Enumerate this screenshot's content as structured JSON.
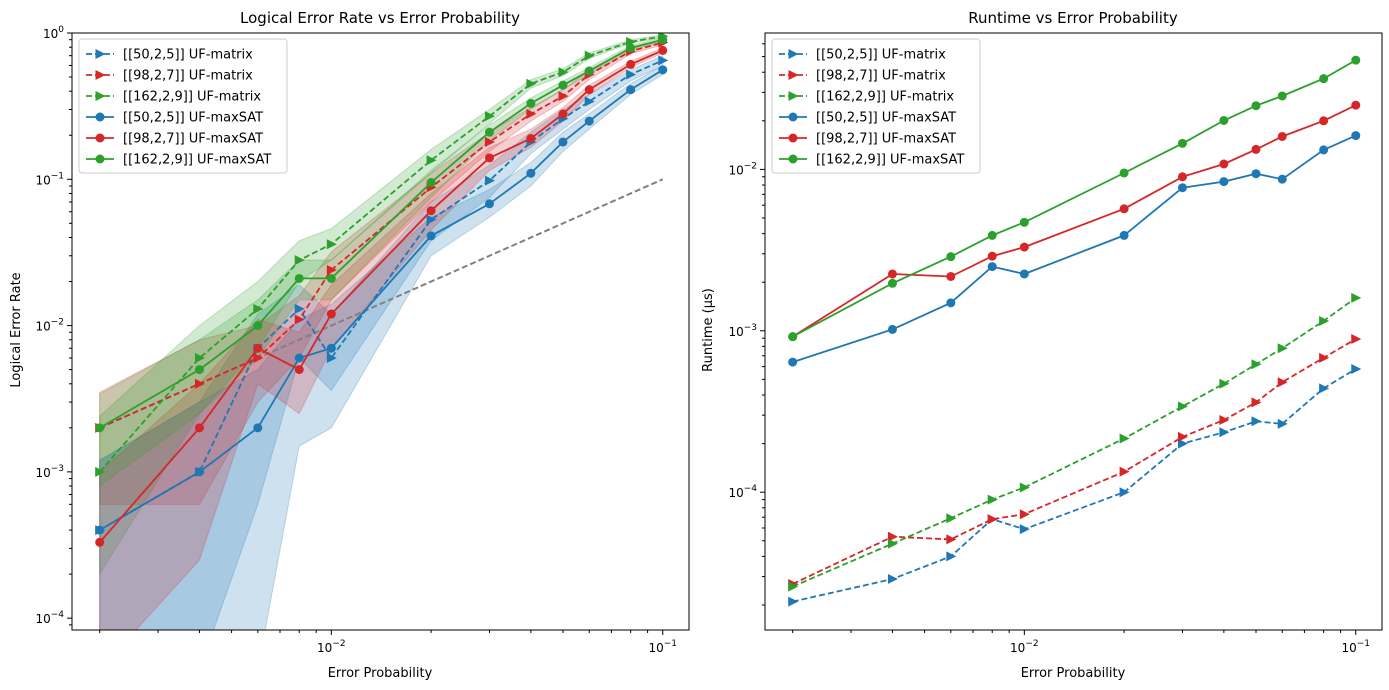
{
  "colors": {
    "blue": "#1f77b4",
    "red": "#d62728",
    "green": "#2ca02c",
    "reference": "#808080"
  },
  "chart_data": [
    {
      "type": "line",
      "title": "Logical Error Rate vs Error Probability",
      "xlabel": "Error Probability",
      "ylabel": "Logical Error Rate",
      "xscale": "log",
      "yscale": "log",
      "xlim": [
        0.00165,
        0.12
      ],
      "ylim": [
        8.3e-05,
        1
      ],
      "xticks": [
        {
          "value": 0.01,
          "label": "10^-2"
        },
        {
          "value": 0.1,
          "label": "10^-1"
        }
      ],
      "yticks": [
        {
          "value": 0.0001,
          "label": "10^-4"
        },
        {
          "value": 0.001,
          "label": "10^-3"
        },
        {
          "value": 0.01,
          "label": "10^-2"
        },
        {
          "value": 0.1,
          "label": "10^-1"
        },
        {
          "value": 1,
          "label": "10^0"
        }
      ],
      "grid": false,
      "legend": "upper left",
      "x": [
        0.002,
        0.004,
        0.006,
        0.008,
        0.01,
        0.02,
        0.03,
        0.04,
        0.05,
        0.06,
        0.08,
        0.1
      ],
      "reference_line": {
        "x": [
          0.002,
          0.1
        ],
        "y": [
          0.002,
          0.1
        ],
        "style": "dashed",
        "color": "#808080"
      },
      "series": [
        {
          "name": "[[50,2,5]] UF-matrix",
          "color": "#1f77b4",
          "dash": true,
          "marker": "triangle",
          "values": [
            0.0004,
            0.001,
            0.007,
            0.013,
            0.006,
            0.053,
            0.098,
            0.18,
            0.26,
            0.34,
            0.52,
            0.65
          ],
          "lower": [
            null,
            null,
            0.0006,
            0.006,
            0.0036,
            0.038,
            0.075,
            0.15,
            0.22,
            0.3,
            0.47,
            0.6
          ],
          "upper": [
            0.0012,
            0.003,
            0.012,
            0.019,
            0.012,
            0.07,
            0.125,
            0.21,
            0.3,
            0.38,
            0.56,
            0.7
          ]
        },
        {
          "name": "[[98,2,7]] UF-matrix",
          "color": "#d62728",
          "dash": true,
          "marker": "triangle",
          "values": [
            0.002,
            0.004,
            0.006,
            0.011,
            0.024,
            0.088,
            0.18,
            0.28,
            0.37,
            0.52,
            0.75,
            0.86
          ],
          "lower": [
            0.0006,
            0.0006,
            0.003,
            0.006,
            0.015,
            0.07,
            0.155,
            0.25,
            0.34,
            0.48,
            0.72,
            0.83
          ],
          "upper": [
            0.0035,
            0.008,
            0.01,
            0.016,
            0.032,
            0.11,
            0.21,
            0.31,
            0.41,
            0.56,
            0.78,
            0.89
          ]
        },
        {
          "name": "[[162,2,9]] UF-matrix",
          "color": "#2ca02c",
          "dash": true,
          "marker": "triangle",
          "values": [
            0.001,
            0.006,
            0.013,
            0.028,
            0.036,
            0.135,
            0.27,
            0.45,
            0.54,
            0.7,
            0.87,
            0.95
          ],
          "lower": [
            0.0002,
            0.0025,
            0.007,
            0.02,
            0.028,
            0.11,
            0.24,
            0.42,
            0.51,
            0.67,
            0.85,
            0.93
          ],
          "upper": [
            0.0024,
            0.01,
            0.02,
            0.038,
            0.046,
            0.16,
            0.3,
            0.48,
            0.57,
            0.73,
            0.9,
            0.97
          ]
        },
        {
          "name": "[[50,2,5]] UF-maxSAT",
          "color": "#1f77b4",
          "dash": false,
          "marker": "circle",
          "values": [
            0.0004,
            0.001,
            0.002,
            0.006,
            0.007,
            0.041,
            0.068,
            0.11,
            0.18,
            0.25,
            0.41,
            0.56
          ],
          "lower": [
            null,
            null,
            null,
            0.0015,
            0.002,
            0.03,
            0.055,
            0.09,
            0.155,
            0.22,
            0.38,
            0.52
          ],
          "upper": [
            0.0012,
            0.003,
            0.005,
            0.011,
            0.014,
            0.055,
            0.085,
            0.13,
            0.21,
            0.28,
            0.45,
            0.6
          ]
        },
        {
          "name": "[[98,2,7]] UF-maxSAT",
          "color": "#d62728",
          "dash": false,
          "marker": "circle",
          "values": [
            0.00033,
            0.002,
            0.007,
            0.005,
            0.012,
            0.061,
            0.14,
            0.19,
            0.28,
            0.41,
            0.61,
            0.76
          ],
          "lower": [
            null,
            0.00025,
            0.004,
            0.0025,
            0.007,
            0.045,
            0.115,
            0.165,
            0.25,
            0.38,
            0.58,
            0.73
          ],
          "upper": [
            0.001,
            0.004,
            0.011,
            0.009,
            0.019,
            0.08,
            0.165,
            0.22,
            0.31,
            0.44,
            0.64,
            0.79
          ]
        },
        {
          "name": "[[162,2,9]] UF-maxSAT",
          "color": "#2ca02c",
          "dash": false,
          "marker": "circle",
          "values": [
            0.002,
            0.005,
            0.01,
            0.021,
            0.021,
            0.095,
            0.21,
            0.33,
            0.44,
            0.55,
            0.79,
            0.9
          ],
          "lower": [
            0.0008,
            0.0025,
            0.006,
            0.015,
            0.015,
            0.075,
            0.185,
            0.3,
            0.41,
            0.52,
            0.76,
            0.87
          ],
          "upper": [
            0.0034,
            0.008,
            0.015,
            0.028,
            0.028,
            0.115,
            0.235,
            0.36,
            0.47,
            0.58,
            0.82,
            0.93
          ]
        }
      ]
    },
    {
      "type": "line",
      "title": "Runtime vs Error Probability",
      "xlabel": "Error Probability",
      "ylabel": "Runtime (μs)",
      "xscale": "log",
      "yscale": "log",
      "xlim": [
        0.00165,
        0.12
      ],
      "ylim": [
        1.4e-05,
        0.07
      ],
      "xticks": [
        {
          "value": 0.01,
          "label": "10^-2"
        },
        {
          "value": 0.1,
          "label": "10^-1"
        }
      ],
      "yticks": [
        {
          "value": 0.0001,
          "label": "10^-4"
        },
        {
          "value": 0.001,
          "label": "10^-3"
        },
        {
          "value": 0.01,
          "label": "10^-2"
        }
      ],
      "grid": false,
      "legend": "upper left",
      "x": [
        0.002,
        0.004,
        0.006,
        0.008,
        0.01,
        0.02,
        0.03,
        0.04,
        0.05,
        0.06,
        0.08,
        0.1
      ],
      "series": [
        {
          "name": "[[50,2,5]] UF-matrix",
          "color": "#1f77b4",
          "dash": true,
          "marker": "triangle",
          "values": [
            2.1e-05,
            2.9e-05,
            4e-05,
            6.8e-05,
            5.9e-05,
            0.0001,
            0.0002,
            0.000235,
            0.000275,
            0.000265,
            0.00044,
            0.00058
          ]
        },
        {
          "name": "[[98,2,7]] UF-matrix",
          "color": "#d62728",
          "dash": true,
          "marker": "triangle",
          "values": [
            2.7e-05,
            5.3e-05,
            5.1e-05,
            6.8e-05,
            7.3e-05,
            0.000134,
            0.00022,
            0.00028,
            0.00036,
            0.00048,
            0.00068,
            0.00089
          ]
        },
        {
          "name": "[[162,2,9]] UF-matrix",
          "color": "#2ca02c",
          "dash": true,
          "marker": "triangle",
          "values": [
            2.6e-05,
            4.8e-05,
            6.9e-05,
            9e-05,
            0.000107,
            0.000215,
            0.00034,
            0.00047,
            0.00062,
            0.00078,
            0.00115,
            0.0016
          ]
        },
        {
          "name": "[[50,2,5]] UF-maxSAT",
          "color": "#1f77b4",
          "dash": false,
          "marker": "circle",
          "values": [
            0.00064,
            0.00102,
            0.00149,
            0.0025,
            0.00225,
            0.0039,
            0.0077,
            0.0084,
            0.0094,
            0.0087,
            0.0132,
            0.0162
          ]
        },
        {
          "name": "[[98,2,7]] UF-maxSAT",
          "color": "#d62728",
          "dash": false,
          "marker": "circle",
          "values": [
            0.00092,
            0.00225,
            0.00217,
            0.0029,
            0.0033,
            0.0057,
            0.009,
            0.0108,
            0.0133,
            0.016,
            0.02,
            0.025
          ]
        },
        {
          "name": "[[162,2,9]] UF-maxSAT",
          "color": "#2ca02c",
          "dash": false,
          "marker": "circle",
          "values": [
            0.00092,
            0.00197,
            0.00288,
            0.0039,
            0.0047,
            0.0095,
            0.0145,
            0.0201,
            0.0248,
            0.0285,
            0.0365,
            0.0475
          ]
        }
      ]
    }
  ]
}
